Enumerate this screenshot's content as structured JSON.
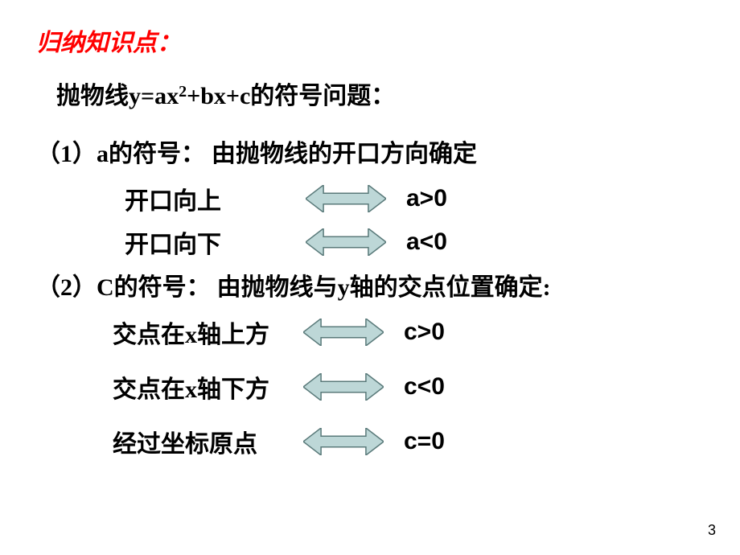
{
  "title": {
    "text": "归纳知识点：",
    "color": "#ff0000"
  },
  "heading": {
    "prefix": "抛物线y=ax",
    "sup": "2",
    "suffix": "+bx+c的符号问题："
  },
  "section1": {
    "label": "（1）a的符号：",
    "desc": "由抛物线的开口方向确定",
    "rules": [
      {
        "left": "开口向上",
        "right": "a>0"
      },
      {
        "left": "开口向下",
        "right": "a<0"
      }
    ]
  },
  "section2": {
    "label": "（2）C的符号：",
    "desc": "由抛物线与y轴的交点位置确定:",
    "rules": [
      {
        "left": "交点在x轴上方",
        "right": "c>0"
      },
      {
        "left": "交点在x轴下方",
        "right": "c<0"
      },
      {
        "left": "经过坐标原点",
        "right": "c=0"
      }
    ]
  },
  "arrow": {
    "fill": "#bdd7d7",
    "stroke": "#5a7a7a",
    "width": 100,
    "height": 34
  },
  "pageNumber": "3"
}
